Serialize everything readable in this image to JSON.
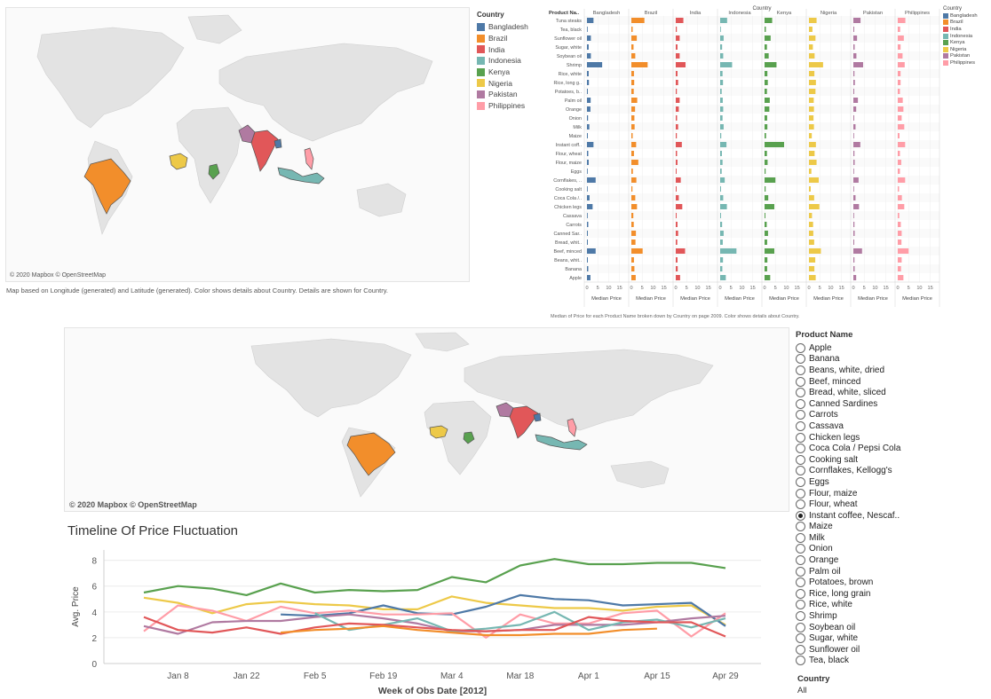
{
  "colors": {
    "Bangladesh": "#4e79a7",
    "Brazil": "#f28e2b",
    "India": "#e15759",
    "Indonesia": "#76b7b2",
    "Kenya": "#59a14f",
    "Nigeria": "#edc948",
    "Pakistan": "#b07aa1",
    "Philippines": "#ff9da7"
  },
  "top_map": {
    "credit": "© 2020 Mapbox © OpenStreetMap",
    "caption": "Map based on Longitude (generated) and Latitude (generated).  Color shows details about Country.  Details are shown for Country.",
    "legend_title": "Country",
    "legend": [
      "Bangladesh",
      "Brazil",
      "India",
      "Indonesia",
      "Kenya",
      "Nigeria",
      "Pakistan",
      "Philippines"
    ]
  },
  "bar_legend": {
    "title": "Country",
    "items": [
      "Bangladesh",
      "Brazil",
      "India",
      "Indonesia",
      "Kenya",
      "Nigeria",
      "Pakistan",
      "Philippines"
    ]
  },
  "bar_caption": "Median of Price for each Product Name broken down by Country on page 2009.  Color shows details about Country.",
  "bottom_map": {
    "credit": "© 2020 Mapbox © OpenStreetMap"
  },
  "filter": {
    "title": "Product Name",
    "options": [
      "Apple",
      "Banana",
      "Beans, white, dried",
      "Beef, minced",
      "Bread, white, sliced",
      "Canned Sardines",
      "Carrots",
      "Cassava",
      "Chicken legs",
      "Coca Cola / Pepsi Cola",
      "Cooking salt",
      "Cornflakes, Kellogg's",
      "Eggs",
      "Flour, maize",
      "Flour, wheat",
      "Instant coffee, Nescaf..",
      "Maize",
      "Milk",
      "Onion",
      "Orange",
      "Palm oil",
      "Potatoes, brown",
      "Rice, long grain",
      "Rice, white",
      "Shrimp",
      "Soybean oil",
      "Sugar, white",
      "Sunflower oil",
      "Tea, black"
    ],
    "selected": "Instant coffee, Nescaf..",
    "country_title": "Country",
    "country_value": "All"
  },
  "chart_data": [
    {
      "type": "bar",
      "title": "",
      "header_row_label": "Product Na..",
      "column_header": "Country",
      "xlabel": "Median Price",
      "xticks": [
        0,
        5,
        10,
        15
      ],
      "xlim": [
        0,
        18
      ],
      "countries": [
        "Bangladesh",
        "Brazil",
        "India",
        "Indonesia",
        "Kenya",
        "Nigeria",
        "Pakistan",
        "Philippines"
      ],
      "categories": [
        "Tuna steaks",
        "Tea, black",
        "Sunflower oil",
        "Sugar, white",
        "Soybean oil",
        "Shrimp",
        "Rice, white",
        "Rice, long g..",
        "Potatoes, b..",
        "Palm oil",
        "Orange",
        "Onion",
        "Milk",
        "Maize",
        "Instant coff..",
        "Flour, wheat",
        "Flour, maize",
        "Eggs",
        "Cornflakes, ..",
        "Cooking salt",
        "Coca Cola /..",
        "Chicken legs",
        "Cassava",
        "Carrots",
        "Canned Sar..",
        "Bread, whit..",
        "Beef, minced",
        "Beans, whit..",
        "Banana",
        "Apple"
      ],
      "series": [
        {
          "name": "Bangladesh",
          "values": [
            3,
            0.3,
            1.8,
            0.8,
            1.8,
            7,
            0.8,
            0.9,
            0.4,
            1.7,
            1.6,
            0.5,
            1.1,
            0.4,
            3,
            0.6,
            0.8,
            0.3,
            4,
            0.3,
            1.2,
            2.6,
            0.3,
            0.6,
            0.4,
            0.4,
            4,
            0.4,
            0.6,
            1.6
          ]
        },
        {
          "name": "Brazil",
          "values": [
            6,
            0.6,
            2.5,
            1,
            1.8,
            7.5,
            1.2,
            1.3,
            1.1,
            2.7,
            1.7,
            1.4,
            1.5,
            0.6,
            2.2,
            1.2,
            3.2,
            0.7,
            2.3,
            0.5,
            1.8,
            2.6,
            0.9,
            1.1,
            2.1,
            1.9,
            5.2,
            1.2,
            1.4,
            2
          ]
        },
        {
          "name": "India",
          "values": [
            3.5,
            0.5,
            1.8,
            0.8,
            1.8,
            4.5,
            0.8,
            1.1,
            0.5,
            1.8,
            1.4,
            0.6,
            1.1,
            0.5,
            2.8,
            0.6,
            0.8,
            0.4,
            2.3,
            0.4,
            1.4,
            3,
            0.4,
            0.8,
            1.1,
            0.7,
            4.3,
            0.8,
            0.9,
            2
          ]
        },
        {
          "name": "Indonesia",
          "values": [
            3.2,
            0.3,
            1.6,
            0.9,
            1.4,
            5.5,
            1.1,
            1.3,
            0.7,
            1.2,
            1.4,
            1.1,
            1.6,
            0.5,
            2.9,
            0.8,
            1.1,
            0.7,
            2.1,
            0.4,
            1.4,
            3.1,
            0.4,
            0.9,
            1.6,
            1.2,
            7.5,
            1.3,
            1,
            2.6
          ]
        },
        {
          "name": "Kenya",
          "values": [
            3.5,
            0.6,
            2.8,
            1.1,
            1.9,
            5.5,
            1.3,
            1.5,
            1.1,
            2.4,
            2.2,
            1.2,
            1.3,
            0.7,
            9,
            1.1,
            1.4,
            0.5,
            5,
            0.5,
            1.7,
            4.5,
            0.4,
            1,
            1.6,
            1.2,
            4.5,
            1.3,
            1.2,
            2.6
          ]
        },
        {
          "name": "Nigeria",
          "values": [
            3.5,
            1.6,
            3,
            1.8,
            2.6,
            6.5,
            2.5,
            3.2,
            3,
            2.2,
            2.3,
            2.1,
            2.3,
            1.3,
            3.2,
            2.6,
            3.5,
            1.1,
            4.5,
            0.8,
            2.4,
            4.8,
            1.4,
            1.9,
            2,
            2.4,
            5.5,
            2.9,
            2.5,
            3.1
          ]
        },
        {
          "name": "Pakistan",
          "values": [
            3.3,
            0.4,
            1.7,
            0.6,
            1.4,
            4.5,
            0.5,
            0.7,
            0.4,
            2.1,
            1.3,
            0.4,
            1,
            0.3,
            3.2,
            0.5,
            0.6,
            0.3,
            2.4,
            0.2,
            1,
            2.6,
            0.3,
            0.5,
            0.6,
            0.4,
            4,
            0.5,
            0.6,
            1.3
          ]
        },
        {
          "name": "Philippines",
          "values": [
            3.5,
            1.1,
            2.8,
            1.3,
            2.2,
            3.2,
            1.3,
            1.3,
            1,
            2.3,
            2.6,
            1.8,
            3,
            0.8,
            3.4,
            1,
            1.6,
            1,
            3.4,
            0.6,
            1.9,
            3,
            0.7,
            1.4,
            1.8,
            1.7,
            5,
            1.8,
            1.5,
            2.6
          ]
        }
      ]
    },
    {
      "type": "line",
      "title": "Timeline Of Price Fluctuation",
      "xlabel": "Week of Obs Date [2012]",
      "ylabel": "Avg. Price",
      "ylim": [
        0,
        8.8
      ],
      "yticks": [
        0,
        2,
        4,
        6,
        8
      ],
      "x": [
        "Jan 1",
        "Jan 8",
        "Jan 15",
        "Jan 22",
        "Jan 29",
        "Feb 5",
        "Feb 12",
        "Feb 19",
        "Feb 26",
        "Mar 4",
        "Mar 11",
        "Mar 18",
        "Mar 25",
        "Apr 1",
        "Apr 8",
        "Apr 15",
        "Apr 22",
        "Apr 29"
      ],
      "xtick_labels": [
        "Jan 8",
        "Jan 22",
        "Feb 5",
        "Feb 19",
        "Mar 4",
        "Mar 18",
        "Apr 1",
        "Apr 15",
        "Apr 29"
      ],
      "series": [
        {
          "name": "Kenya",
          "values": [
            5.5,
            6,
            5.8,
            5.3,
            6.2,
            5.5,
            5.7,
            5.6,
            5.7,
            6.7,
            6.3,
            7.6,
            8.1,
            7.7,
            7.7,
            7.8,
            7.8,
            7.4
          ]
        },
        {
          "name": "Nigeria",
          "values": [
            5.1,
            4.7,
            3.9,
            4.6,
            4.8,
            4.6,
            4.5,
            4.2,
            4.2,
            5.2,
            4.7,
            4.5,
            4.3,
            4.3,
            4.1,
            4.4,
            4.5,
            3
          ]
        },
        {
          "name": "Bangladesh",
          "values": [
            null,
            null,
            null,
            null,
            3.8,
            3.7,
            3.9,
            4.5,
            3.9,
            3.8,
            4.4,
            5.3,
            5,
            4.9,
            4.5,
            4.6,
            4.7,
            2.9
          ]
        },
        {
          "name": "Philippines",
          "values": [
            2.5,
            4.5,
            4.1,
            3.3,
            4.4,
            3.9,
            4.1,
            3.8,
            3.8,
            3.9,
            2,
            3.8,
            3.1,
            3.1,
            3.9,
            4.1,
            2.1,
            3.9
          ]
        },
        {
          "name": "Pakistan",
          "values": [
            2.9,
            2.3,
            3.2,
            3.3,
            3.3,
            3.6,
            3.8,
            3.5,
            3.1,
            2.5,
            2.5,
            2.6,
            3,
            3,
            3,
            3.2,
            3.5,
            3.7
          ]
        },
        {
          "name": "Indonesia",
          "values": [
            null,
            null,
            null,
            null,
            null,
            3.9,
            2.6,
            3,
            3.5,
            2.5,
            2.7,
            3,
            4,
            2.6,
            3.2,
            3.4,
            2.8,
            3.5
          ]
        },
        {
          "name": "India",
          "values": [
            3.6,
            2.6,
            2.4,
            2.8,
            2.3,
            2.8,
            3.1,
            3,
            2.8,
            2.6,
            2.5,
            2.6,
            2.6,
            3.6,
            3.3,
            3.2,
            3.2,
            2.1
          ]
        },
        {
          "name": "Brazil",
          "values": [
            null,
            null,
            null,
            null,
            2.4,
            2.6,
            2.7,
            2.9,
            2.6,
            2.4,
            2.2,
            2.2,
            2.3,
            2.3,
            2.6,
            2.7,
            null,
            null
          ]
        }
      ]
    }
  ]
}
